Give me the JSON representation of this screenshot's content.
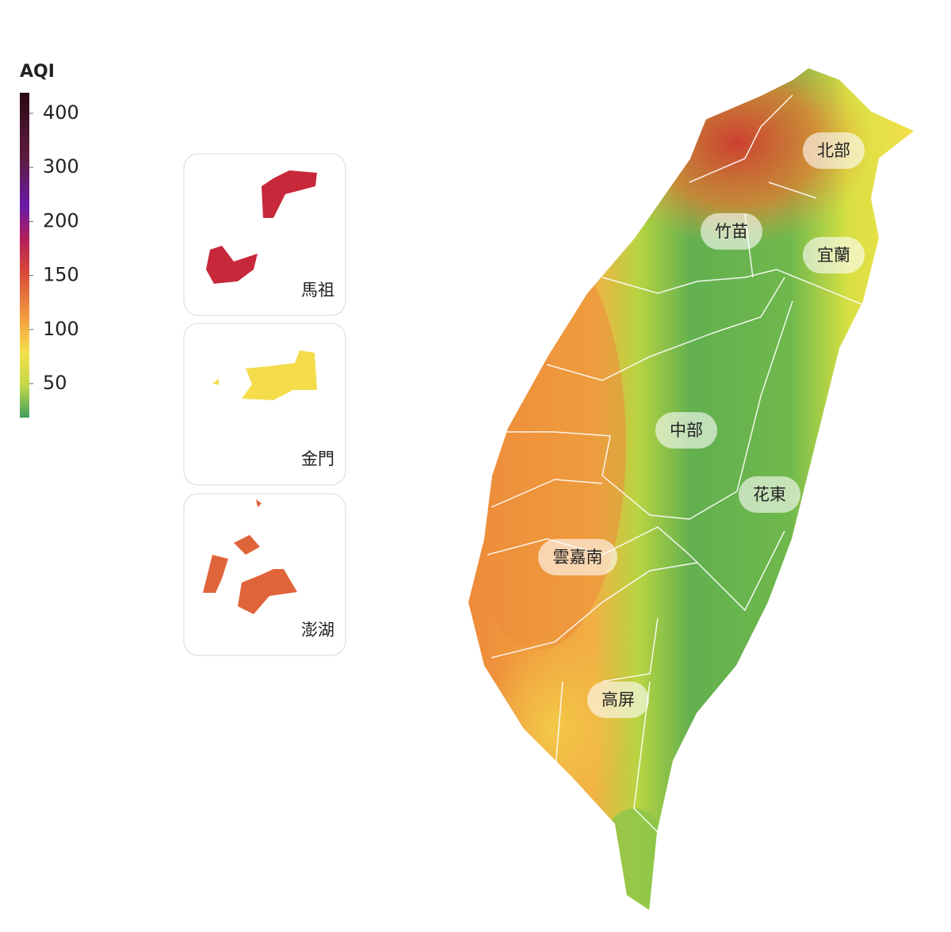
{
  "legend": {
    "title": "AQI",
    "ticks": [
      400,
      300,
      200,
      150,
      100,
      50
    ]
  },
  "insets": [
    {
      "label": "馬祖"
    },
    {
      "label": "金門"
    },
    {
      "label": "澎湖"
    }
  ],
  "regions": [
    {
      "label": "北部"
    },
    {
      "label": "竹苗"
    },
    {
      "label": "宜蘭"
    },
    {
      "label": "中部"
    },
    {
      "label": "花東"
    },
    {
      "label": "雲嘉南"
    },
    {
      "label": "高屏"
    }
  ]
}
